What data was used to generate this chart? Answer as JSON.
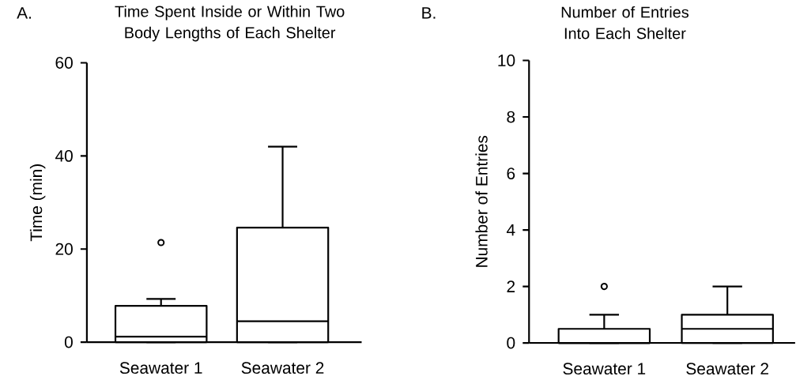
{
  "chart_data": [
    {
      "type": "box",
      "title": "Time Spent Inside or Within Two Body Lengths of Each Shelter",
      "ylabel": "Time (min)",
      "annotations": [
        "A."
      ],
      "categories": [
        "Seawater 1",
        "Seawater 2"
      ],
      "boxes": [
        {
          "low": 0,
          "q1": 0,
          "median": 1.2,
          "q3": 7.8,
          "high": 9.3,
          "outliers": [
            21.4
          ]
        },
        {
          "low": 0,
          "q1": 0,
          "median": 4.5,
          "q3": 24.6,
          "high": 42
        }
      ],
      "ylim": [
        0,
        60
      ],
      "yticks": [
        0,
        20,
        40,
        60
      ]
    },
    {
      "type": "box",
      "title": "Number of Entries Into Each Shelter",
      "ylabel": "Number of Entries",
      "annotations": [
        "B."
      ],
      "categories": [
        "Seawater 1",
        "Seawater 2"
      ],
      "boxes": [
        {
          "low": 0,
          "q1": 0,
          "median": 0,
          "q3": 0.5,
          "high": 1,
          "outliers": [
            2
          ]
        },
        {
          "low": 0,
          "q1": 0,
          "median": 0.5,
          "q3": 1,
          "high": 2
        }
      ],
      "ylim": [
        0,
        10
      ],
      "yticks": [
        0,
        2,
        4,
        6,
        8,
        10
      ]
    }
  ]
}
